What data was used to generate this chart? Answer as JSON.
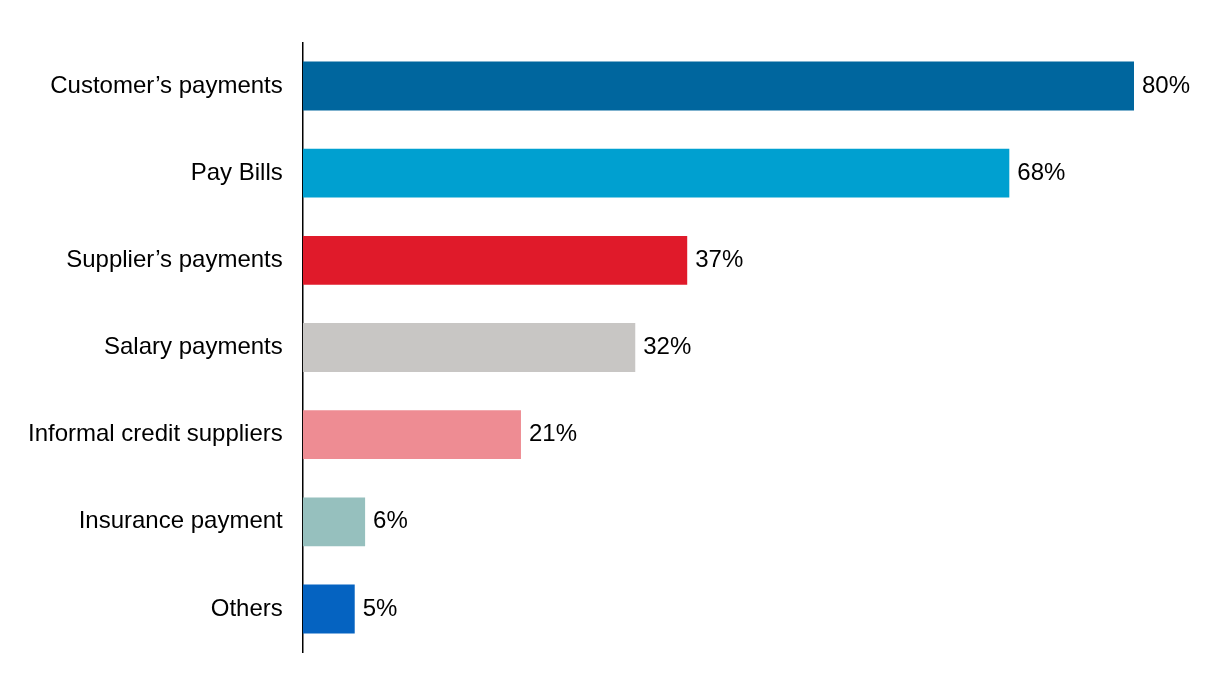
{
  "chart_data": {
    "type": "bar",
    "orientation": "horizontal",
    "categories": [
      "Customer’s payments",
      "Pay Bills",
      "Supplier’s payments",
      "Salary payments",
      "Informal credit suppliers",
      "Insurance payment",
      "Others"
    ],
    "values": [
      80,
      68,
      37,
      32,
      21,
      6,
      5
    ],
    "value_labels": [
      "80%",
      "68%",
      "37%",
      "32%",
      "21%",
      "6%",
      "5%"
    ],
    "colors": [
      "#00669e",
      "#00a0d0",
      "#e01a2a",
      "#c8c6c4",
      "#ee8c93",
      "#96c0be",
      "#0563c1"
    ],
    "legend": false
  }
}
